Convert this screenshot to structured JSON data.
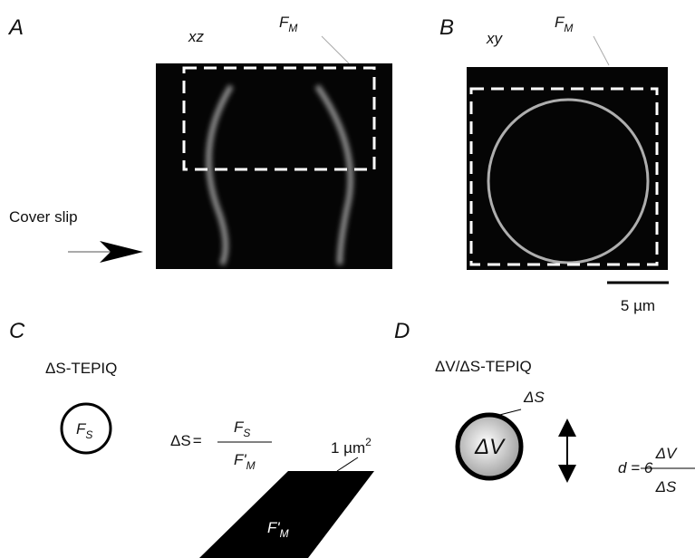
{
  "panels": {
    "a": {
      "label": "A",
      "view": "xz",
      "roi": {
        "main": "F",
        "sub": "M"
      },
      "annotation": "Cover slip"
    },
    "b": {
      "label": "B",
      "view": "xy",
      "roi": {
        "main": "F",
        "sub": "M"
      },
      "scale_bar": "5 µm"
    },
    "c": {
      "label": "C",
      "title": "ΔS-TEPIQ",
      "spot": {
        "main": "F",
        "sub": "S"
      },
      "equation": {
        "lhs": "ΔS",
        "eq": "=",
        "numerator": {
          "main": "F",
          "sub": "S"
        },
        "denominator": {
          "main": "F'",
          "sub": "M"
        }
      },
      "area": {
        "main": "1 µm",
        "sup": "2"
      },
      "membrane": {
        "main": "F'",
        "sub": "M"
      }
    },
    "d": {
      "label": "D",
      "title": "ΔV/ΔS-TEPIQ",
      "surface": "ΔS",
      "volume": "ΔV",
      "equation": {
        "lhs": "d = 6",
        "numerator": "ΔV",
        "denominator": "ΔS"
      }
    }
  }
}
